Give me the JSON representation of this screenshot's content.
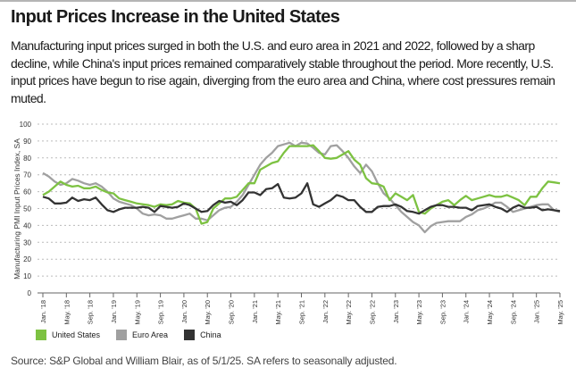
{
  "title": "Input Prices Increase in the United States",
  "description": "Manufacturing input prices surged in both the U.S. and euro area in 2021 and 2022, followed by a sharp decline, while China's input prices remained comparatively stable throughout the period. More recently, U.S. input prices have begun to rise again, diverging from the euro area and China, where cost pressures remain muted.",
  "source": "Source: S&P Global and William Blair, as of 5/1/25. SA refers to seasonally adjusted.",
  "chart_data": {
    "type": "line",
    "title": "",
    "xlabel": "",
    "ylabel": "Manufacturing PMI Input Prices Index, SA",
    "ylim": [
      0,
      100
    ],
    "yticks": [
      0,
      10,
      20,
      30,
      40,
      50,
      60,
      70,
      80,
      90,
      100
    ],
    "grid": "horizontal dashed",
    "legend_position": "bottom-left",
    "x_start": "Jan. 2018",
    "x_end": "May. 2025",
    "frequency": "monthly",
    "xtick_labels": [
      "Jan. '18",
      "May. '18",
      "Sep. '18",
      "Jan. '19",
      "May. '19",
      "Sep. '19",
      "Jan. '20",
      "May. '20",
      "Sep. '20",
      "Jan. '21",
      "May. '21",
      "Sep. '21",
      "Jan. '22",
      "May. '22",
      "Sep. '22",
      "Jan. '23",
      "May. '23",
      "Sep. '23",
      "Jan. '24",
      "May. '24",
      "Sep. '24",
      "Jan. '25",
      "May. '25"
    ],
    "series": [
      {
        "name": "United States",
        "color": "#7dc242",
        "values": [
          58,
          60,
          63,
          66,
          64,
          63,
          63.5,
          62,
          62,
          63,
          61,
          59.5,
          59,
          56,
          55,
          54,
          53,
          52.5,
          52,
          51,
          52.5,
          52,
          52.5,
          54.5,
          53.5,
          53,
          50,
          41,
          42,
          50,
          53,
          56,
          56,
          57,
          61,
          65,
          65,
          73,
          75,
          77,
          78,
          83,
          87,
          87,
          87,
          87,
          87.5,
          84,
          80,
          79.5,
          80,
          82,
          84,
          79,
          76,
          68,
          65,
          64.5,
          63,
          55,
          59,
          57,
          55,
          58,
          48,
          47,
          50,
          52,
          54,
          55,
          52,
          55,
          57.5,
          55,
          56,
          57,
          58,
          57,
          57,
          58,
          56.5,
          55,
          52,
          57,
          57,
          62,
          66,
          65.5,
          65
        ]
      },
      {
        "name": "Euro Area",
        "color": "#a0a0a0",
        "values": [
          71,
          69,
          66,
          64,
          65,
          67.5,
          66.5,
          65,
          64,
          65,
          63,
          60,
          56,
          54,
          53,
          52,
          50,
          47,
          46,
          46.5,
          46,
          44,
          44,
          45,
          46,
          47,
          44,
          44,
          43,
          46,
          49,
          50.5,
          51,
          54,
          58,
          64,
          70,
          76,
          80,
          83,
          87,
          88,
          89,
          87,
          89,
          88.5,
          86,
          83,
          82,
          87,
          87.5,
          84,
          80,
          75,
          71,
          76,
          72,
          65,
          59,
          56,
          52,
          48,
          45,
          42,
          40,
          36,
          39.5,
          41.5,
          42,
          42.5,
          42.5,
          42.5,
          45,
          46.5,
          49,
          50,
          51.5,
          53.5,
          53.5,
          51,
          48,
          49,
          50,
          51,
          52,
          52.5,
          52.5,
          49,
          48
        ]
      },
      {
        "name": "China",
        "color": "#333333",
        "values": [
          57,
          56,
          53,
          53,
          53.5,
          56.5,
          54.5,
          55.5,
          55,
          56.5,
          52.5,
          49,
          48,
          49.5,
          50.5,
          50.5,
          50.5,
          51,
          50.5,
          48,
          51.5,
          51,
          50.5,
          51,
          53,
          52,
          50,
          48,
          48.5,
          52,
          54.5,
          53.5,
          54,
          52,
          55,
          59.5,
          59.5,
          58,
          61.5,
          62,
          64.5,
          56.5,
          56,
          56.5,
          59,
          65,
          52.5,
          51,
          53,
          55,
          58,
          57,
          55,
          55,
          51,
          48,
          48,
          51,
          51.5,
          51.5,
          52.5,
          51,
          48.5,
          48,
          47,
          49,
          51,
          52,
          52,
          51,
          51,
          50.5,
          50.5,
          49,
          51.5,
          52,
          52.5,
          51,
          50,
          48,
          50.5,
          52,
          50.5,
          50.5,
          51,
          49,
          49.5,
          49,
          48.5
        ]
      }
    ]
  }
}
